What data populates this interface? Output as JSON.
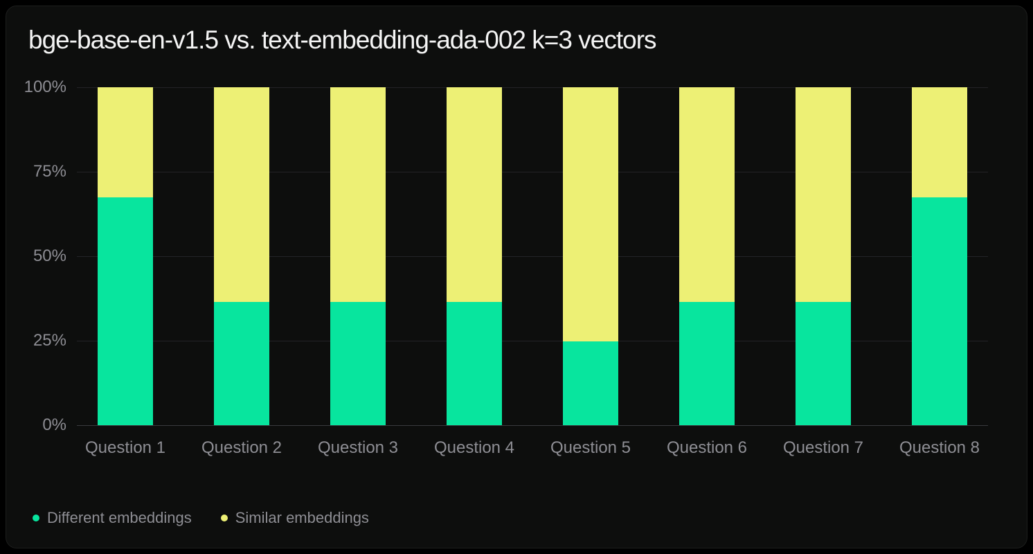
{
  "chart_data": {
    "type": "bar",
    "stacked": true,
    "stacked_mode": "percent",
    "title": "bge-base-en-v1.5 vs. text-embedding-ada-002 k=3 vectors",
    "categories": [
      "Question 1",
      "Question 2",
      "Question 3",
      "Question 4",
      "Question 5",
      "Question 6",
      "Question 7",
      "Question 8"
    ],
    "series": [
      {
        "name": "Different embeddings",
        "color": "#08e59e",
        "values": [
          67.5,
          36.4,
          36.4,
          36.4,
          24.7,
          36.4,
          36.4,
          67.5
        ]
      },
      {
        "name": "Similar embeddings",
        "color": "#edf075",
        "values": [
          32.5,
          63.6,
          63.6,
          63.6,
          75.3,
          63.6,
          63.6,
          32.5
        ]
      }
    ],
    "y_ticks": [
      "100%",
      "75%",
      "50%",
      "25%",
      "0%"
    ],
    "ylim": [
      0,
      100
    ],
    "xlabel": "",
    "ylabel": "",
    "grid": "horizontal",
    "legend_position": "bottom-left"
  },
  "colors": {
    "card_background": "#0d0e0d",
    "page_background": "#000000",
    "title_text": "#f4f4f4",
    "axis_text": "#8e8e94",
    "gridline": "#232327",
    "axis_line": "#3a3a3e",
    "series_green": "#08e59e",
    "series_yellow": "#edf075"
  }
}
